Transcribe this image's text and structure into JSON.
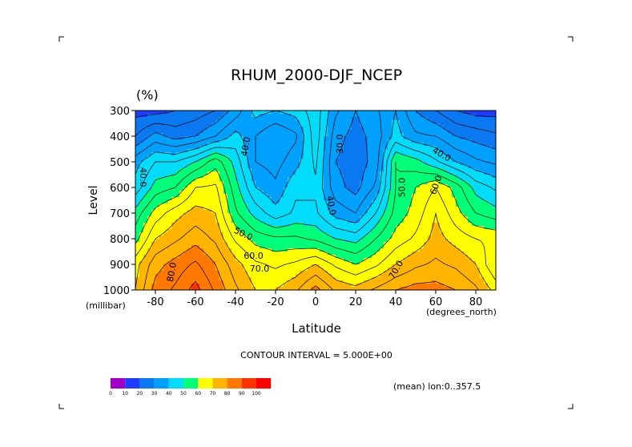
{
  "chart_data": {
    "type": "heatmap",
    "title": "RHUM_2000-DJF_NCEP",
    "units": "(%)",
    "xlabel": "Latitude",
    "x_units": "(degrees_north)",
    "ylabel": "Level",
    "y_units": "(millibar)",
    "xlim": [
      -90,
      90
    ],
    "ylim": [
      1000,
      300
    ],
    "x_ticks": [
      -80,
      -60,
      -40,
      -20,
      0,
      20,
      40,
      60,
      80
    ],
    "x_tick_labels": [
      "-80",
      "-60",
      "-40",
      "-20",
      "0",
      "20",
      "40",
      "60",
      "80"
    ],
    "y_ticks": [
      300,
      400,
      500,
      600,
      700,
      800,
      900,
      1000
    ],
    "y_tick_labels": [
      "300",
      "400",
      "500",
      "600",
      "700",
      "800",
      "900",
      "1000"
    ],
    "contour_interval_text": "CONTOUR INTERVAL = 5.000E+00",
    "footnote": "(mean) lon:0..357.5",
    "levels": [
      300,
      400,
      500,
      600,
      700,
      800,
      900,
      1000
    ],
    "latitudes": [
      -90,
      -80,
      -70,
      -60,
      -50,
      -40,
      -30,
      -20,
      -10,
      0,
      10,
      20,
      30,
      40,
      50,
      60,
      70,
      80,
      90
    ],
    "values": [
      [
        18,
        18,
        20,
        22,
        25,
        32,
        42,
        40,
        42,
        48,
        36,
        30,
        34,
        40,
        30,
        25,
        20,
        18,
        18
      ],
      [
        25,
        32,
        28,
        30,
        35,
        42,
        35,
        30,
        34,
        48,
        32,
        28,
        32,
        42,
        36,
        35,
        30,
        28,
        26
      ],
      [
        38,
        45,
        45,
        50,
        58,
        48,
        35,
        33,
        38,
        46,
        30,
        27,
        32,
        55,
        52,
        46,
        40,
        36,
        34
      ],
      [
        42,
        52,
        55,
        65,
        66,
        52,
        40,
        36,
        44,
        44,
        32,
        28,
        36,
        55,
        60,
        65,
        58,
        48,
        44
      ],
      [
        52,
        62,
        68,
        72,
        70,
        56,
        48,
        42,
        46,
        46,
        38,
        35,
        45,
        57,
        62,
        70,
        62,
        55,
        52
      ],
      [
        58,
        70,
        74,
        78,
        74,
        64,
        58,
        56,
        56,
        54,
        50,
        48,
        55,
        62,
        66,
        72,
        68,
        65,
        64
      ],
      [
        68,
        78,
        82,
        86,
        80,
        72,
        66,
        64,
        66,
        70,
        64,
        60,
        64,
        70,
        74,
        76,
        74,
        70,
        60
      ],
      [
        70,
        82,
        86,
        92,
        84,
        76,
        70,
        70,
        74,
        82,
        74,
        72,
        76,
        80,
        82,
        82,
        80,
        76,
        68
      ]
    ],
    "contour_labels": [
      {
        "text": "40.0",
        "lat": -86,
        "lev": 560,
        "rot": 90
      },
      {
        "text": "40.0",
        "lat": -35,
        "lev": 440,
        "rot": -80
      },
      {
        "text": "30.0",
        "lat": 12,
        "lev": 430,
        "rot": -90
      },
      {
        "text": "40.0",
        "lat": 63,
        "lev": 470,
        "rot": 30
      },
      {
        "text": "50.0",
        "lat": 43,
        "lev": 600,
        "rot": -90
      },
      {
        "text": "60.0",
        "lat": 60,
        "lev": 590,
        "rot": -70
      },
      {
        "text": "40.0",
        "lat": 8,
        "lev": 670,
        "rot": 80
      },
      {
        "text": "50.0",
        "lat": -36,
        "lev": 780,
        "rot": 25
      },
      {
        "text": "60.0",
        "lat": -31,
        "lev": 865,
        "rot": 0
      },
      {
        "text": "70.0",
        "lat": -28,
        "lev": 915,
        "rot": 0
      },
      {
        "text": "80.0",
        "lat": -72,
        "lev": 930,
        "rot": -80
      },
      {
        "text": "70.0",
        "lat": 40,
        "lev": 920,
        "rot": -60
      }
    ],
    "colorbar": {
      "colors": [
        "#a000c8",
        "#1e3cff",
        "#0a78f0",
        "#00a0ff",
        "#00dcfa",
        "#00ff78",
        "#ffff00",
        "#ffb400",
        "#ff7800",
        "#ff3200",
        "#ff0000"
      ],
      "labels": [
        "0",
        "10",
        "20",
        "30",
        "40",
        "50",
        "60",
        "70",
        "80",
        "90",
        "100"
      ]
    },
    "grid": false
  }
}
